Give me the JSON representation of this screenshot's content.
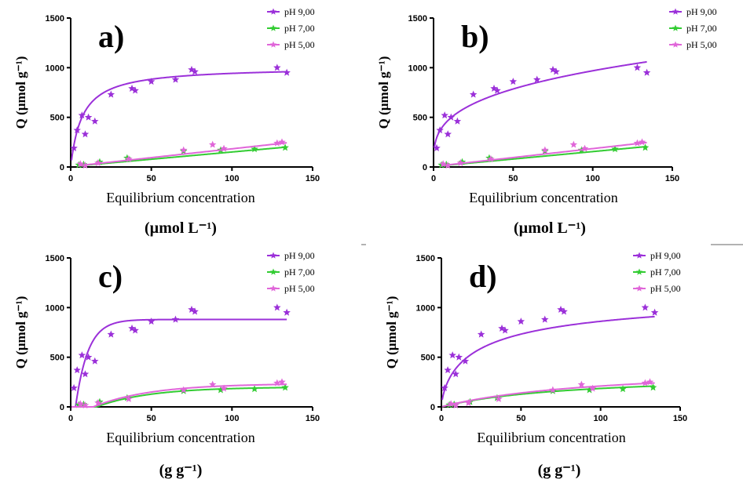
{
  "chart_data": [
    {
      "type": "scatter",
      "title": "a)",
      "ylabel": "Q (µmol g⁻¹)",
      "xlabel": "Equilibrium concentration",
      "xunit": "(µmol L⁻¹)",
      "xlim": [
        0,
        150
      ],
      "ylim": [
        0,
        1500
      ],
      "xticks": [
        "0",
        "50",
        "100",
        "150"
      ],
      "yticks": [
        "0",
        "500",
        "1000",
        "1500"
      ],
      "legend_position": "top-right",
      "series": [
        {
          "name": "pH 9,00",
          "color": "#9b30d9",
          "points": [
            [
              2,
              190
            ],
            [
              4,
              370
            ],
            [
              7,
              520
            ],
            [
              9,
              330
            ],
            [
              11,
              500
            ],
            [
              15,
              460
            ],
            [
              25,
              730
            ],
            [
              38,
              790
            ],
            [
              40,
              770
            ],
            [
              50,
              860
            ],
            [
              65,
              880
            ],
            [
              75,
              980
            ],
            [
              77,
              960
            ],
            [
              128,
              1000
            ],
            [
              134,
              950
            ]
          ],
          "curve": {
            "model": "langmuir",
            "qmax": 1010,
            "k": 0.14
          }
        },
        {
          "name": "pH 7,00",
          "color": "#33cc33",
          "points": [
            [
              5,
              20
            ],
            [
              8,
              25
            ],
            [
              18,
              50
            ],
            [
              35,
              90
            ],
            [
              70,
              160
            ],
            [
              93,
              170
            ],
            [
              114,
              180
            ],
            [
              133,
              195
            ]
          ],
          "curve": {
            "model": "linear",
            "slope": 1.46,
            "intercept": 5
          }
        },
        {
          "name": "pH 5,00",
          "color": "#e066d9",
          "points": [
            [
              6,
              30
            ],
            [
              9,
              15
            ],
            [
              17,
              40
            ],
            [
              36,
              80
            ],
            [
              70,
              170
            ],
            [
              88,
              225
            ],
            [
              95,
              185
            ],
            [
              128,
              240
            ],
            [
              131,
              250
            ]
          ],
          "curve": {
            "model": "linear",
            "slope": 1.78,
            "intercept": 5
          }
        }
      ]
    },
    {
      "type": "scatter",
      "title": "b)",
      "ylabel": "Q (µmol g⁻¹)",
      "xlabel": "Equilibrium concentration",
      "xunit": "(µmol L⁻¹)",
      "xlim": [
        0,
        150
      ],
      "ylim": [
        0,
        1500
      ],
      "xticks": [
        "0",
        "50",
        "100",
        "150"
      ],
      "yticks": [
        "0",
        "500",
        "1000",
        "1500"
      ],
      "legend_position": "top-right",
      "series": [
        {
          "name": "pH 9,00",
          "color": "#9b30d9",
          "points": [
            [
              2,
              190
            ],
            [
              4,
              370
            ],
            [
              7,
              520
            ],
            [
              9,
              330
            ],
            [
              11,
              500
            ],
            [
              15,
              460
            ],
            [
              25,
              730
            ],
            [
              38,
              790
            ],
            [
              40,
              770
            ],
            [
              50,
              860
            ],
            [
              65,
              880
            ],
            [
              75,
              980
            ],
            [
              77,
              960
            ],
            [
              128,
              1000
            ],
            [
              134,
              950
            ]
          ],
          "curve": {
            "model": "freundlich",
            "kf": 240,
            "n": 3.3
          }
        },
        {
          "name": "pH 7,00",
          "color": "#33cc33",
          "points": [
            [
              5,
              20
            ],
            [
              8,
              25
            ],
            [
              18,
              50
            ],
            [
              35,
              90
            ],
            [
              70,
              160
            ],
            [
              93,
              170
            ],
            [
              114,
              180
            ],
            [
              133,
              195
            ]
          ],
          "curve": {
            "model": "linear",
            "slope": 1.5,
            "intercept": 5
          }
        },
        {
          "name": "pH 5,00",
          "color": "#e066d9",
          "points": [
            [
              6,
              30
            ],
            [
              9,
              15
            ],
            [
              17,
              40
            ],
            [
              36,
              80
            ],
            [
              70,
              170
            ],
            [
              88,
              225
            ],
            [
              95,
              185
            ],
            [
              128,
              240
            ],
            [
              131,
              250
            ]
          ],
          "curve": {
            "model": "linear",
            "slope": 1.8,
            "intercept": 5
          }
        }
      ]
    },
    {
      "type": "scatter",
      "title": "c)",
      "ylabel": "Q (µmol g⁻¹)",
      "xlabel": "Equilibrium concentration",
      "xunit": "(g g⁻¹)",
      "xlim": [
        0,
        150
      ],
      "ylim": [
        0,
        1500
      ],
      "xticks": [
        "0",
        "50",
        "100",
        "150"
      ],
      "yticks": [
        "0",
        "500",
        "1000",
        "1500"
      ],
      "legend_position": "top-right",
      "series": [
        {
          "name": "pH 9,00",
          "color": "#9b30d9",
          "points": [
            [
              2,
              190
            ],
            [
              4,
              370
            ],
            [
              7,
              520
            ],
            [
              9,
              330
            ],
            [
              11,
              500
            ],
            [
              15,
              460
            ],
            [
              25,
              730
            ],
            [
              38,
              790
            ],
            [
              40,
              770
            ],
            [
              50,
              860
            ],
            [
              65,
              880
            ],
            [
              75,
              980
            ],
            [
              77,
              960
            ],
            [
              128,
              1000
            ],
            [
              134,
              950
            ]
          ],
          "curve": {
            "model": "exp_offset",
            "qmax": 880,
            "x0": 3,
            "r": 0.13
          }
        },
        {
          "name": "pH 7,00",
          "color": "#33cc33",
          "points": [
            [
              5,
              20
            ],
            [
              8,
              25
            ],
            [
              18,
              50
            ],
            [
              35,
              90
            ],
            [
              70,
              160
            ],
            [
              93,
              170
            ],
            [
              114,
              180
            ],
            [
              133,
              195
            ]
          ],
          "curve": {
            "model": "exp_offset",
            "qmax": 200,
            "x0": 16,
            "r": 0.03
          }
        },
        {
          "name": "pH 5,00",
          "color": "#e066d9",
          "points": [
            [
              6,
              30
            ],
            [
              9,
              15
            ],
            [
              17,
              40
            ],
            [
              36,
              80
            ],
            [
              70,
              170
            ],
            [
              88,
              225
            ],
            [
              95,
              185
            ],
            [
              128,
              240
            ],
            [
              131,
              250
            ]
          ],
          "curve": {
            "model": "exp_offset",
            "qmax": 235,
            "x0": 14,
            "r": 0.028
          }
        }
      ]
    },
    {
      "type": "scatter",
      "title": "d)",
      "ylabel": "Q (µmol g⁻¹)",
      "xlabel": "Equilibrium concentration",
      "xunit": "(g g⁻¹)",
      "xlim": [
        0,
        150
      ],
      "ylim": [
        0,
        1500
      ],
      "xticks": [
        "0",
        "50",
        "100",
        "150"
      ],
      "yticks": [
        "0",
        "500",
        "1000",
        "1500"
      ],
      "legend_position": "top-right",
      "series": [
        {
          "name": "pH 9,00",
          "color": "#9b30d9",
          "points": [
            [
              2,
              190
            ],
            [
              4,
              370
            ],
            [
              7,
              520
            ],
            [
              9,
              330
            ],
            [
              11,
              500
            ],
            [
              15,
              460
            ],
            [
              25,
              730
            ],
            [
              38,
              790
            ],
            [
              40,
              770
            ],
            [
              50,
              860
            ],
            [
              65,
              880
            ],
            [
              75,
              980
            ],
            [
              77,
              960
            ],
            [
              128,
              1000
            ],
            [
              134,
              950
            ]
          ],
          "curve": {
            "model": "sips",
            "qmax": 1200,
            "k": 0.038,
            "n": 0.7
          }
        },
        {
          "name": "pH 7,00",
          "color": "#33cc33",
          "points": [
            [
              5,
              20
            ],
            [
              8,
              25
            ],
            [
              18,
              50
            ],
            [
              35,
              90
            ],
            [
              70,
              160
            ],
            [
              93,
              170
            ],
            [
              114,
              180
            ],
            [
              133,
              195
            ]
          ],
          "curve": {
            "model": "sips",
            "qmax": 340,
            "k": 0.012,
            "n": 1.0
          }
        },
        {
          "name": "pH 5,00",
          "color": "#e066d9",
          "points": [
            [
              6,
              30
            ],
            [
              9,
              15
            ],
            [
              17,
              40
            ],
            [
              36,
              80
            ],
            [
              70,
              170
            ],
            [
              88,
              225
            ],
            [
              95,
              185
            ],
            [
              128,
              240
            ],
            [
              131,
              250
            ]
          ],
          "curve": {
            "model": "sips",
            "qmax": 420,
            "k": 0.01,
            "n": 1.0
          }
        }
      ]
    }
  ]
}
